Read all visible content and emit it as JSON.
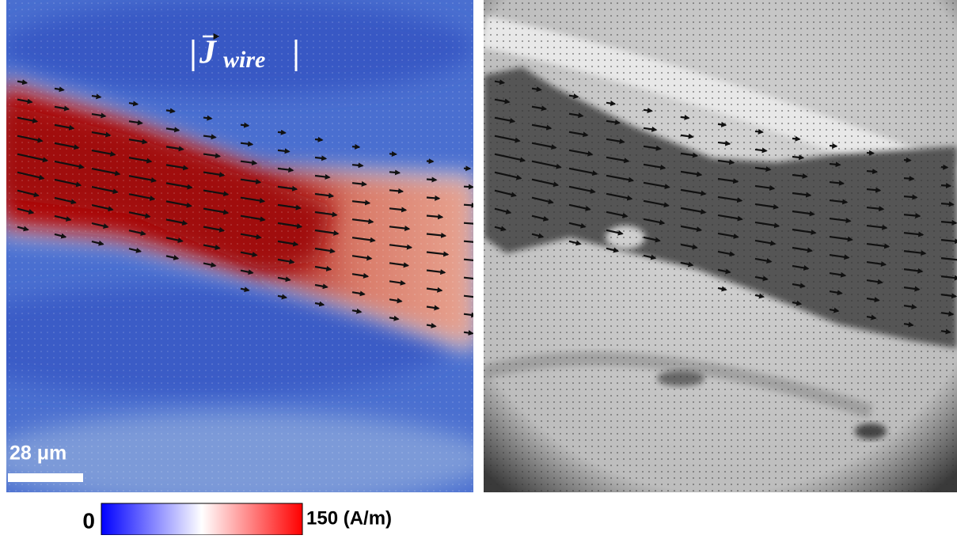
{
  "figure": {
    "title": {
      "symbol": "J",
      "subscript": "wire"
    },
    "scale_bar": "28 μm",
    "colorbar": {
      "ticks": [
        0,
        {
          "value": 150,
          "label": "150 (A/m)"
        }
      ]
    }
  }
}
